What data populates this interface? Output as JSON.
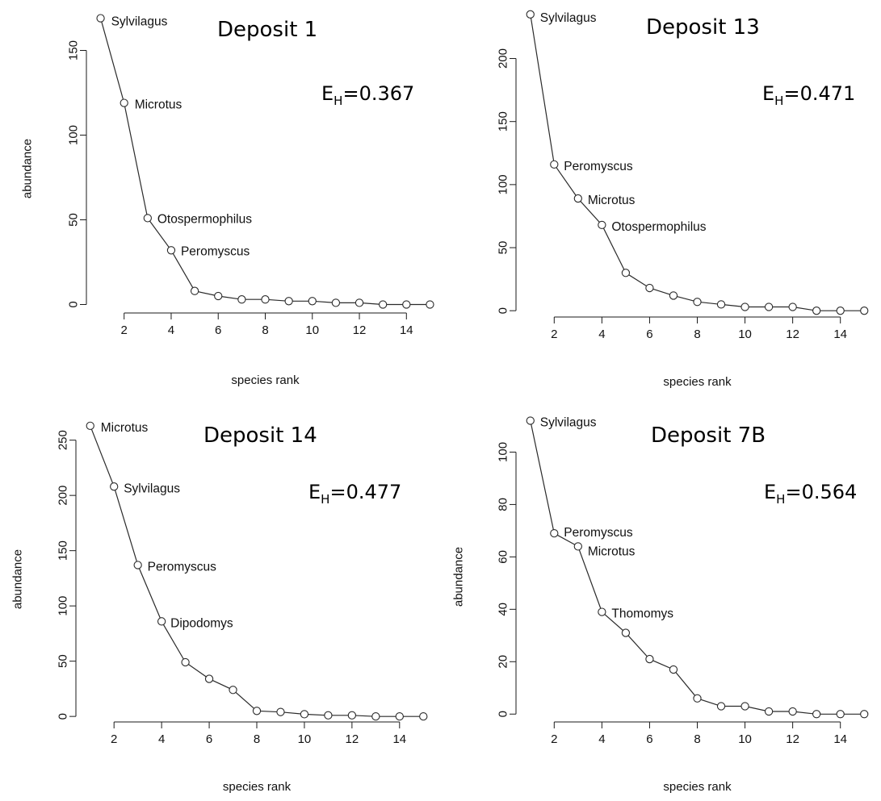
{
  "chart_data": [
    {
      "type": "line",
      "title": "Deposit 1",
      "evenness": {
        "symbol": "E",
        "subscript": "H",
        "value": "=0.367"
      },
      "xlabel": "species rank",
      "ylabel": "abundance",
      "xlim": [
        0.5,
        15.5
      ],
      "ylim": [
        -5,
        175
      ],
      "xticks": [
        2,
        4,
        6,
        8,
        10,
        12,
        14
      ],
      "yticks": [
        0,
        50,
        100,
        150
      ],
      "x": [
        1,
        2,
        3,
        4,
        5,
        6,
        7,
        8,
        9,
        10,
        11,
        12,
        13,
        14,
        15
      ],
      "y": [
        169,
        119,
        51,
        32,
        8,
        5,
        3,
        3,
        2,
        2,
        1,
        1,
        0,
        0,
        0
      ],
      "point_labels": [
        {
          "rank": 1,
          "text": "Sylvilagus"
        },
        {
          "rank": 2,
          "text": "Microtus"
        },
        {
          "rank": 3,
          "text": "Otospermophilus"
        },
        {
          "rank": 4,
          "text": "Peromyscus"
        }
      ],
      "grid": false
    },
    {
      "type": "line",
      "title": "Deposit 13",
      "evenness": {
        "symbol": "E",
        "subscript": "H",
        "value": "=0.471"
      },
      "xlabel": "species rank",
      "ylabel": "",
      "xlim": [
        0.5,
        15.5
      ],
      "ylim": [
        -5,
        240
      ],
      "xticks": [
        2,
        4,
        6,
        8,
        10,
        12,
        14
      ],
      "yticks": [
        0,
        50,
        100,
        150,
        200
      ],
      "x": [
        1,
        2,
        3,
        4,
        5,
        6,
        7,
        8,
        9,
        10,
        11,
        12,
        13,
        14,
        15
      ],
      "y": [
        235,
        116,
        89,
        68,
        30,
        18,
        12,
        7,
        5,
        3,
        3,
        3,
        0,
        0,
        0
      ],
      "point_labels": [
        {
          "rank": 1,
          "text": "Sylvilagus"
        },
        {
          "rank": 2,
          "text": "Peromyscus"
        },
        {
          "rank": 3,
          "text": "Microtus"
        },
        {
          "rank": 4,
          "text": "Otospermophilus"
        }
      ],
      "grid": false
    },
    {
      "type": "line",
      "title": "Deposit 14",
      "evenness": {
        "symbol": "E",
        "subscript": "H",
        "value": "=0.477"
      },
      "xlabel": "species rank",
      "ylabel": "abundance",
      "xlim": [
        0.5,
        15.5
      ],
      "ylim": [
        -5,
        268
      ],
      "xticks": [
        2,
        4,
        6,
        8,
        10,
        12,
        14
      ],
      "yticks": [
        0,
        50,
        100,
        150,
        200,
        250
      ],
      "x": [
        1,
        2,
        3,
        4,
        5,
        6,
        7,
        8,
        9,
        10,
        11,
        12,
        13,
        14,
        15
      ],
      "y": [
        263,
        208,
        137,
        86,
        49,
        34,
        24,
        5,
        4,
        2,
        1,
        1,
        0,
        0,
        0
      ],
      "point_labels": [
        {
          "rank": 1,
          "text": "Microtus"
        },
        {
          "rank": 2,
          "text": "Sylvilagus"
        },
        {
          "rank": 3,
          "text": "Peromyscus"
        },
        {
          "rank": 4,
          "text": "Dipodomys"
        }
      ],
      "grid": false
    },
    {
      "type": "line",
      "title": "Deposit 7B",
      "evenness": {
        "symbol": "E",
        "subscript": "H",
        "value": "=0.564"
      },
      "xlabel": "species rank",
      "ylabel": "abundance",
      "xlim": [
        0.5,
        15.5
      ],
      "ylim": [
        -3,
        114
      ],
      "xticks": [
        2,
        4,
        6,
        8,
        10,
        12,
        14
      ],
      "yticks": [
        0,
        20,
        40,
        60,
        80,
        100
      ],
      "x": [
        1,
        2,
        3,
        4,
        5,
        6,
        7,
        8,
        9,
        10,
        11,
        12,
        13,
        14,
        15
      ],
      "y": [
        112,
        69,
        64,
        39,
        31,
        21,
        17,
        6,
        3,
        3,
        1,
        1,
        0,
        0,
        0
      ],
      "point_labels": [
        {
          "rank": 1,
          "text": "Sylvilagus"
        },
        {
          "rank": 2,
          "text": "Peromyscus"
        },
        {
          "rank": 3,
          "text": "Microtus"
        },
        {
          "rank": 4,
          "text": "Thomomys"
        }
      ],
      "grid": false
    }
  ]
}
